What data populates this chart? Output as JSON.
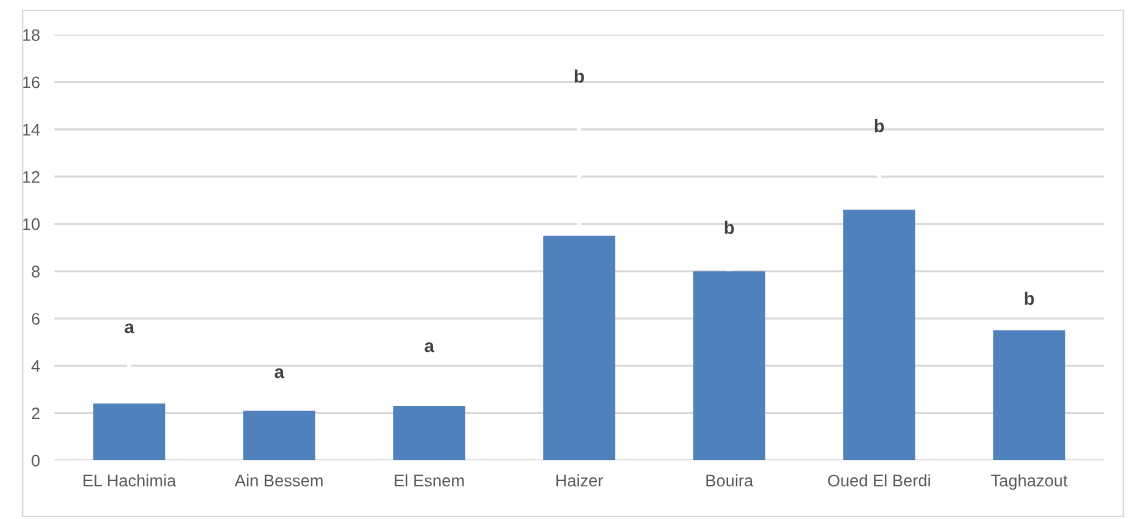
{
  "chart_data": {
    "type": "bar",
    "categories": [
      "EL Hachimia",
      "Ain Bessem",
      "El Esnem",
      "Haizer",
      "Bouira",
      "Oued El Berdi",
      "Taghazout"
    ],
    "values": [
      2.4,
      2.1,
      2.3,
      9.5,
      8.0,
      10.6,
      5.5
    ],
    "color": "#4f81bd",
    "errors": [
      2.0,
      0.4,
      1.3,
      5.5,
      0.6,
      2.3,
      0.1
    ],
    "ylim": [
      0,
      18
    ],
    "yticks": [
      0,
      2,
      4,
      6,
      8,
      10,
      12,
      14,
      16,
      18
    ],
    "grid": "y",
    "annotations": [
      "a",
      "a",
      "a",
      "b",
      "b",
      "b",
      "b"
    ]
  }
}
